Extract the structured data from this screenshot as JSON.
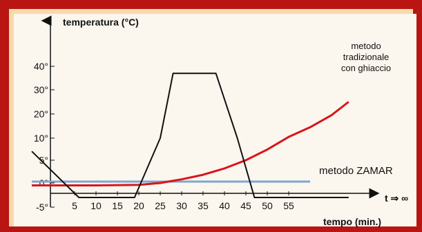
{
  "chart_data": {
    "type": "line",
    "ylabel": "temperatura (°C)",
    "xlabel": "tempo (min.)",
    "x_ticks": [
      "5",
      "10",
      "15",
      "20",
      "25",
      "30",
      "35",
      "40",
      "45",
      "50",
      "55"
    ],
    "y_ticks": [
      "-5°",
      "0°",
      "5°",
      "10°",
      "20°",
      "30°",
      "40°"
    ],
    "infinity_label": "t ⇒ ∞",
    "series": [
      {
        "name": "metodo ZAMAR",
        "color": "#7ea6cf",
        "points": [
          [
            -5,
            0.3
          ],
          [
            60,
            0.3
          ]
        ]
      },
      {
        "name": "metodo tradizionale con ghiaccio",
        "color": "#d9141a",
        "points": [
          [
            -5,
            -0.5
          ],
          [
            10,
            -0.5
          ],
          [
            20,
            -0.4
          ],
          [
            25,
            0
          ],
          [
            30,
            0.8
          ],
          [
            35,
            1.8
          ],
          [
            40,
            3.2
          ],
          [
            45,
            5.0
          ],
          [
            50,
            7.4
          ],
          [
            55,
            10.5
          ],
          [
            60,
            14.5
          ],
          [
            65,
            19.5
          ],
          [
            69,
            25
          ]
        ]
      },
      {
        "name": "",
        "color": "#111111",
        "points": [
          [
            -5,
            7
          ],
          [
            6,
            -3
          ],
          [
            19,
            -3
          ],
          [
            25,
            10
          ],
          [
            28,
            37
          ],
          [
            38,
            37
          ],
          [
            43,
            10
          ],
          [
            47,
            -3
          ],
          [
            69,
            -3
          ]
        ]
      }
    ],
    "annotations": {
      "traditional_label": [
        "metodo",
        "tradizionale",
        "con ghiaccio"
      ],
      "zamar_label": "metodo ZAMAR"
    }
  }
}
